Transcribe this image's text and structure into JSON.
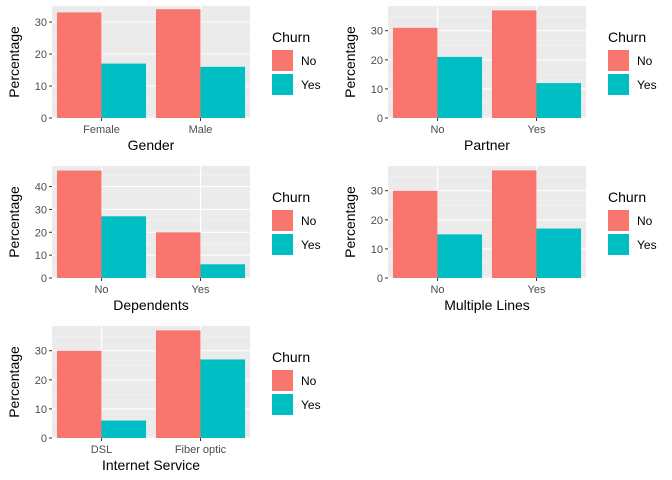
{
  "chart_data": [
    {
      "type": "bar",
      "categories": [
        "Female",
        "Male"
      ],
      "series": [
        {
          "name": "No",
          "values": [
            33,
            34
          ]
        },
        {
          "name": "Yes",
          "values": [
            17,
            16
          ]
        }
      ],
      "xlabel": "Gender",
      "ylabel": "Percentage",
      "ylim": [
        0,
        35
      ],
      "yticks": [
        0,
        10,
        20,
        30
      ],
      "legend": {
        "title": "Churn",
        "position": "right"
      },
      "grid": true
    },
    {
      "type": "bar",
      "categories": [
        "No",
        "Yes"
      ],
      "series": [
        {
          "name": "No",
          "values": [
            31,
            37
          ]
        },
        {
          "name": "Yes",
          "values": [
            21,
            12
          ]
        }
      ],
      "xlabel": "Partner",
      "ylabel": "Percentage",
      "ylim": [
        0,
        38.5
      ],
      "yticks": [
        0,
        10,
        20,
        30
      ],
      "legend": {
        "title": "Churn",
        "position": "right"
      },
      "grid": true
    },
    {
      "type": "bar",
      "categories": [
        "No",
        "Yes"
      ],
      "series": [
        {
          "name": "No",
          "values": [
            47,
            20
          ]
        },
        {
          "name": "Yes",
          "values": [
            27,
            6
          ]
        }
      ],
      "xlabel": "Dependents",
      "ylabel": "Percentage",
      "ylim": [
        0,
        49
      ],
      "yticks": [
        0,
        10,
        20,
        30,
        40
      ],
      "legend": {
        "title": "Churn",
        "position": "right"
      },
      "grid": true
    },
    {
      "type": "bar",
      "categories": [
        "No",
        "Yes"
      ],
      "series": [
        {
          "name": "No",
          "values": [
            30,
            37
          ]
        },
        {
          "name": "Yes",
          "values": [
            15,
            17
          ]
        }
      ],
      "xlabel": "Multiple Lines",
      "ylabel": "Percentage",
      "ylim": [
        0,
        38.5
      ],
      "yticks": [
        0,
        10,
        20,
        30
      ],
      "legend": {
        "title": "Churn",
        "position": "right"
      },
      "grid": true
    },
    {
      "type": "bar",
      "categories": [
        "DSL",
        "Fiber optic"
      ],
      "series": [
        {
          "name": "No",
          "values": [
            30,
            37
          ]
        },
        {
          "name": "Yes",
          "values": [
            6,
            27
          ]
        }
      ],
      "xlabel": "Internet Service",
      "ylabel": "Percentage",
      "ylim": [
        0,
        38.5
      ],
      "yticks": [
        0,
        10,
        20,
        30
      ],
      "legend": {
        "title": "Churn",
        "position": "right"
      },
      "grid": true
    }
  ],
  "colors": {
    "series": [
      "#F8766D",
      "#00BFC4"
    ],
    "panel_background": "#EBEBEB",
    "grid_major": "#FFFFFF",
    "tick_text": "#4D4D4D",
    "tick_mark": "#333333"
  }
}
